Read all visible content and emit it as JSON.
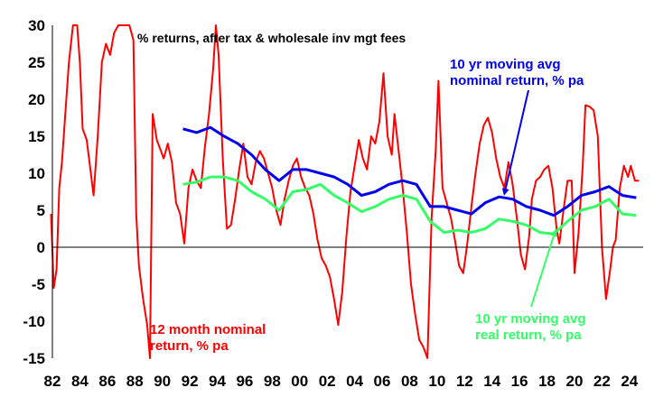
{
  "chart_data": {
    "type": "line",
    "title": "% returns, after tax & wholesale inv mgt fees",
    "xlabel": "",
    "ylabel": "",
    "xlim": [
      1982,
      2025
    ],
    "ylim": [
      -15,
      30
    ],
    "y_ticks": [
      30,
      25,
      20,
      15,
      10,
      5,
      0,
      -5,
      -10,
      -15
    ],
    "x_ticks": [
      {
        "x": 1982,
        "label": "82"
      },
      {
        "x": 1984,
        "label": "84"
      },
      {
        "x": 1986,
        "label": "86"
      },
      {
        "x": 1988,
        "label": "88"
      },
      {
        "x": 1990,
        "label": "90"
      },
      {
        "x": 1992,
        "label": "92"
      },
      {
        "x": 1994,
        "label": "94"
      },
      {
        "x": 1996,
        "label": "96"
      },
      {
        "x": 1998,
        "label": "98"
      },
      {
        "x": 2000,
        "label": "00"
      },
      {
        "x": 2002,
        "label": "02"
      },
      {
        "x": 2004,
        "label": "04"
      },
      {
        "x": 2006,
        "label": "06"
      },
      {
        "x": 2008,
        "label": "08"
      },
      {
        "x": 2010,
        "label": "10"
      },
      {
        "x": 2012,
        "label": "12"
      },
      {
        "x": 2014,
        "label": "14"
      },
      {
        "x": 2016,
        "label": "16"
      },
      {
        "x": 2018,
        "label": "18"
      },
      {
        "x": 2020,
        "label": "20"
      },
      {
        "x": 2022,
        "label": "22"
      },
      {
        "x": 2024,
        "label": "24"
      }
    ],
    "grid": false,
    "series": [
      {
        "name": "12 month nominal return, % pa",
        "color": "#ff0000",
        "points": [
          [
            1981.9,
            4.5
          ],
          [
            1982.1,
            -5.5
          ],
          [
            1982.3,
            -3.0
          ],
          [
            1982.5,
            8.0
          ],
          [
            1982.7,
            11.5
          ],
          [
            1982.9,
            17.0
          ],
          [
            1983.2,
            25.0
          ],
          [
            1983.5,
            30.0
          ],
          [
            1983.8,
            30.0
          ],
          [
            1984.0,
            25.0
          ],
          [
            1984.2,
            16.0
          ],
          [
            1984.5,
            14.5
          ],
          [
            1984.8,
            10.0
          ],
          [
            1985.0,
            7.0
          ],
          [
            1985.3,
            15.0
          ],
          [
            1985.6,
            25.0
          ],
          [
            1985.9,
            27.5
          ],
          [
            1986.2,
            26.0
          ],
          [
            1986.5,
            29.0
          ],
          [
            1986.8,
            30.0
          ],
          [
            1987.2,
            30.0
          ],
          [
            1987.6,
            30.0
          ],
          [
            1987.9,
            28.0
          ],
          [
            1988.1,
            4.5
          ],
          [
            1988.3,
            -2.5
          ],
          [
            1988.6,
            -7.0
          ],
          [
            1988.9,
            -10.5
          ],
          [
            1989.1,
            -15.0
          ],
          [
            1989.3,
            18.0
          ],
          [
            1989.6,
            14.5
          ],
          [
            1989.9,
            13.0
          ],
          [
            1990.1,
            12.0
          ],
          [
            1990.4,
            14.0
          ],
          [
            1990.7,
            11.5
          ],
          [
            1991.0,
            6.0
          ],
          [
            1991.3,
            4.5
          ],
          [
            1991.6,
            0.5
          ],
          [
            1991.9,
            8.0
          ],
          [
            1992.2,
            10.5
          ],
          [
            1992.5,
            9.0
          ],
          [
            1992.8,
            8.0
          ],
          [
            1993.1,
            13.5
          ],
          [
            1993.4,
            18.0
          ],
          [
            1993.7,
            24.0
          ],
          [
            1993.9,
            30.0
          ],
          [
            1994.1,
            26.0
          ],
          [
            1994.4,
            12.0
          ],
          [
            1994.7,
            2.5
          ],
          [
            1995.0,
            3.0
          ],
          [
            1995.3,
            6.5
          ],
          [
            1995.6,
            10.5
          ],
          [
            1995.9,
            14.0
          ],
          [
            1996.2,
            9.5
          ],
          [
            1996.5,
            8.5
          ],
          [
            1996.8,
            11.5
          ],
          [
            1997.1,
            13.0
          ],
          [
            1997.4,
            12.0
          ],
          [
            1997.7,
            10.0
          ],
          [
            1998.0,
            8.0
          ],
          [
            1998.3,
            5.0
          ],
          [
            1998.6,
            3.0
          ],
          [
            1998.9,
            6.5
          ],
          [
            1999.2,
            9.0
          ],
          [
            1999.5,
            11.0
          ],
          [
            1999.8,
            12.0
          ],
          [
            2000.1,
            9.5
          ],
          [
            2000.4,
            8.0
          ],
          [
            2000.7,
            7.0
          ],
          [
            2001.0,
            4.5
          ],
          [
            2001.3,
            1.0
          ],
          [
            2001.6,
            -1.5
          ],
          [
            2001.9,
            -2.5
          ],
          [
            2002.2,
            -4.0
          ],
          [
            2002.5,
            -7.0
          ],
          [
            2002.8,
            -10.5
          ],
          [
            2003.1,
            -6.0
          ],
          [
            2003.4,
            1.5
          ],
          [
            2003.7,
            7.5
          ],
          [
            2004.0,
            11.0
          ],
          [
            2004.3,
            14.5
          ],
          [
            2004.6,
            12.0
          ],
          [
            2004.9,
            10.5
          ],
          [
            2005.2,
            15.0
          ],
          [
            2005.5,
            14.0
          ],
          [
            2005.8,
            17.0
          ],
          [
            2006.1,
            23.5
          ],
          [
            2006.4,
            15.0
          ],
          [
            2006.7,
            12.5
          ],
          [
            2006.9,
            18.0
          ],
          [
            2007.2,
            13.0
          ],
          [
            2007.5,
            8.0
          ],
          [
            2007.8,
            2.0
          ],
          [
            2008.1,
            -5.0
          ],
          [
            2008.4,
            -9.0
          ],
          [
            2008.7,
            -12.5
          ],
          [
            2009.0,
            -13.5
          ],
          [
            2009.3,
            -15.0
          ],
          [
            2009.6,
            4.0
          ],
          [
            2009.9,
            13.0
          ],
          [
            2010.1,
            22.5
          ],
          [
            2010.4,
            8.0
          ],
          [
            2010.7,
            6.0
          ],
          [
            2011.0,
            4.0
          ],
          [
            2011.3,
            1.0
          ],
          [
            2011.6,
            -2.5
          ],
          [
            2011.9,
            -3.5
          ],
          [
            2012.2,
            0.5
          ],
          [
            2012.5,
            5.5
          ],
          [
            2012.8,
            10.0
          ],
          [
            2013.1,
            14.0
          ],
          [
            2013.4,
            16.5
          ],
          [
            2013.7,
            17.5
          ],
          [
            2014.0,
            15.5
          ],
          [
            2014.3,
            12.0
          ],
          [
            2014.6,
            9.5
          ],
          [
            2014.9,
            8.0
          ],
          [
            2015.2,
            11.5
          ],
          [
            2015.5,
            8.5
          ],
          [
            2015.8,
            4.0
          ],
          [
            2016.1,
            -1.0
          ],
          [
            2016.4,
            -3.0
          ],
          [
            2016.7,
            1.5
          ],
          [
            2016.9,
            6.5
          ],
          [
            2017.2,
            9.0
          ],
          [
            2017.5,
            9.5
          ],
          [
            2017.8,
            10.5
          ],
          [
            2018.1,
            11.0
          ],
          [
            2018.4,
            8.0
          ],
          [
            2018.7,
            2.5
          ],
          [
            2018.9,
            0.5
          ],
          [
            2019.2,
            5.0
          ],
          [
            2019.5,
            9.0
          ],
          [
            2019.8,
            9.0
          ],
          [
            2020.0,
            -3.5
          ],
          [
            2020.3,
            2.0
          ],
          [
            2020.6,
            11.0
          ],
          [
            2020.8,
            19.2
          ],
          [
            2021.1,
            19.0
          ],
          [
            2021.4,
            18.5
          ],
          [
            2021.7,
            15.0
          ],
          [
            2022.0,
            0.0
          ],
          [
            2022.3,
            -7.0
          ],
          [
            2022.6,
            -3.0
          ],
          [
            2022.8,
            0.0
          ],
          [
            2023.0,
            1.0
          ],
          [
            2023.3,
            8.0
          ],
          [
            2023.6,
            11.0
          ],
          [
            2023.9,
            9.5
          ],
          [
            2024.1,
            11.0
          ],
          [
            2024.4,
            9.0
          ],
          [
            2024.7,
            9.0
          ]
        ]
      },
      {
        "name": "10 yr moving avg nominal return, % pa",
        "color": "#0000ee",
        "points": [
          [
            1991.5,
            16.0
          ],
          [
            1992.5,
            15.5
          ],
          [
            1993.5,
            16.2
          ],
          [
            1994.5,
            15.0
          ],
          [
            1995.5,
            14.0
          ],
          [
            1996.5,
            12.5
          ],
          [
            1997.5,
            10.5
          ],
          [
            1998.5,
            9.0
          ],
          [
            1999.5,
            10.5
          ],
          [
            2000.5,
            10.5
          ],
          [
            2001.5,
            10.0
          ],
          [
            2002.5,
            9.5
          ],
          [
            2003.5,
            8.5
          ],
          [
            2004.5,
            7.0
          ],
          [
            2005.5,
            7.5
          ],
          [
            2006.5,
            8.5
          ],
          [
            2007.5,
            9.0
          ],
          [
            2008.5,
            8.5
          ],
          [
            2009.5,
            5.5
          ],
          [
            2010.5,
            5.5
          ],
          [
            2011.5,
            5.0
          ],
          [
            2012.5,
            4.5
          ],
          [
            2013.5,
            6.0
          ],
          [
            2014.5,
            6.8
          ],
          [
            2015.5,
            6.5
          ],
          [
            2016.5,
            5.5
          ],
          [
            2017.5,
            5.0
          ],
          [
            2018.5,
            4.3
          ],
          [
            2019.5,
            5.5
          ],
          [
            2020.5,
            7.0
          ],
          [
            2021.5,
            7.5
          ],
          [
            2022.5,
            8.2
          ],
          [
            2023.5,
            7.0
          ],
          [
            2024.5,
            6.7
          ]
        ]
      },
      {
        "name": "10 yr moving avg real return, % pa",
        "color": "#33ff66",
        "points": [
          [
            1991.5,
            8.5
          ],
          [
            1992.5,
            8.8
          ],
          [
            1993.5,
            9.5
          ],
          [
            1994.5,
            9.5
          ],
          [
            1995.5,
            9.0
          ],
          [
            1996.5,
            7.5
          ],
          [
            1997.5,
            6.5
          ],
          [
            1998.5,
            5.0
          ],
          [
            1999.5,
            7.5
          ],
          [
            2000.5,
            7.8
          ],
          [
            2001.5,
            8.5
          ],
          [
            2002.5,
            7.0
          ],
          [
            2003.5,
            6.0
          ],
          [
            2004.5,
            4.8
          ],
          [
            2005.5,
            5.5
          ],
          [
            2006.5,
            6.5
          ],
          [
            2007.5,
            7.0
          ],
          [
            2008.5,
            6.5
          ],
          [
            2009.5,
            3.5
          ],
          [
            2010.5,
            2.0
          ],
          [
            2011.5,
            2.3
          ],
          [
            2012.5,
            2.0
          ],
          [
            2013.5,
            2.5
          ],
          [
            2014.5,
            3.8
          ],
          [
            2015.5,
            3.5
          ],
          [
            2016.5,
            3.0
          ],
          [
            2017.5,
            2.0
          ],
          [
            2018.5,
            1.8
          ],
          [
            2019.5,
            3.5
          ],
          [
            2020.5,
            5.0
          ],
          [
            2021.5,
            5.5
          ],
          [
            2022.5,
            6.5
          ],
          [
            2023.5,
            4.5
          ],
          [
            2024.5,
            4.3
          ]
        ]
      }
    ],
    "annotations": [
      {
        "id": "nominal-avg",
        "lines": [
          "10 yr moving avg",
          "nominal return, % pa"
        ],
        "color": "#0000ee",
        "arrow_to": [
          2014.9,
          7.2
        ]
      },
      {
        "id": "real-avg",
        "lines": [
          "10 yr moving avg",
          "real return, % pa"
        ],
        "color": "#33ff66",
        "arrow_to": [
          2018.6,
          2.2
        ]
      },
      {
        "id": "nominal-12m",
        "lines": [
          "12 month nominal",
          "return, % pa"
        ],
        "color": "#ff0000"
      }
    ]
  }
}
